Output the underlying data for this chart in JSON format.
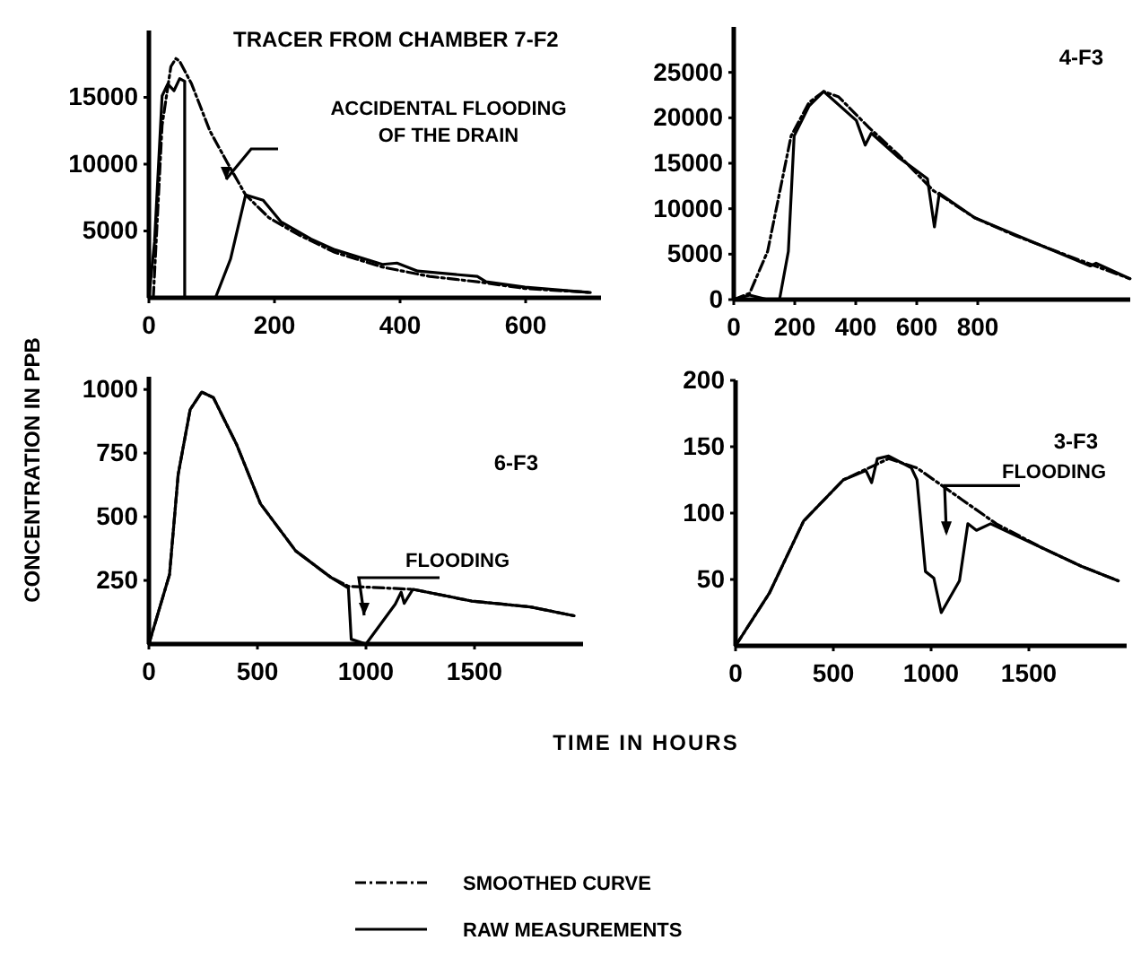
{
  "chart_data": [
    {
      "type": "line",
      "title": "TRACER FROM CHAMBER 7-F2",
      "xlim": [
        0,
        720
      ],
      "ylim": [
        0,
        20000
      ],
      "xticks": [
        0,
        200,
        400,
        600
      ],
      "yticks": [
        5000,
        10000,
        15000
      ],
      "legend": "bottom",
      "annotations": [
        "ACCIDENTAL FLOODING\nOF THE DRAIN"
      ],
      "series": [
        {
          "name": "SMOOTHED CURVE",
          "color": "#000000",
          "line_style": "dashed",
          "x": [
            7,
            21,
            35,
            43,
            49,
            68,
            97,
            125,
            154,
            191,
            239,
            296,
            372,
            447,
            523,
            599,
            703
          ],
          "values": [
            0,
            12900,
            17300,
            17900,
            17700,
            16000,
            12500,
            10100,
            7700,
            6000,
            4700,
            3400,
            2300,
            1600,
            1200,
            700,
            400
          ]
        },
        {
          "name": "RAW MEASUREMENTS",
          "color": "#000000",
          "line_style": "solid",
          "x": [
            0,
            9,
            21,
            30,
            40,
            49,
            57,
            57,
            106,
            130,
            154,
            182,
            210,
            258,
            296,
            372,
            395,
            428,
            523,
            537,
            599,
            703
          ],
          "values": [
            0,
            4200,
            15100,
            16000,
            15500,
            16400,
            16200,
            0,
            0,
            2900,
            7700,
            7300,
            5700,
            4400,
            3600,
            2500,
            2600,
            2000,
            1600,
            1200,
            800,
            400
          ]
        }
      ]
    },
    {
      "type": "line",
      "title": "4-F3",
      "xlim": [
        0,
        1300
      ],
      "ylim": [
        0,
        30000
      ],
      "xticks": [
        0,
        200,
        400,
        600,
        800
      ],
      "yticks": [
        0,
        5000,
        10000,
        15000,
        20000,
        25000
      ],
      "series": [
        {
          "color": "#000000",
          "line_style": "dashed",
          "x": [
            0,
            52,
            111,
            188,
            247,
            295,
            344,
            441,
            538,
            654,
            790,
            926,
            1082,
            1217,
            1299
          ],
          "values": [
            0,
            700,
            5300,
            18000,
            21700,
            22900,
            22300,
            19000,
            16000,
            12000,
            9000,
            7000,
            5000,
            3300,
            2300
          ]
        },
        {
          "color": "#000000",
          "line_style": "solid",
          "x": [
            0,
            52,
            111,
            150,
            179,
            198,
            247,
            295,
            402,
            431,
            451,
            538,
            635,
            658,
            674,
            790,
            1169,
            1188,
            1299
          ],
          "values": [
            0,
            500,
            0,
            0,
            5300,
            18000,
            21300,
            22900,
            19700,
            17000,
            18300,
            15700,
            13300,
            8000,
            11700,
            9000,
            3700,
            4000,
            2300
          ]
        }
      ]
    },
    {
      "type": "line",
      "title": "6-F3",
      "ylabel": "CONCENTRATION IN PPB",
      "xlabel": "TIME IN HOURS",
      "xlim": [
        0,
        2000
      ],
      "ylim": [
        0,
        1050
      ],
      "xticks": [
        0,
        500,
        1000,
        1500
      ],
      "yticks": [
        250,
        500,
        750,
        1000
      ],
      "annotations": [
        "FLOODING"
      ],
      "series": [
        {
          "color": "#000000",
          "line_style": "dashed",
          "x": [
            0,
            95,
            135,
            190,
            243,
            297,
            405,
            514,
            676,
            838,
            919,
            1216,
            1486,
            1757,
            1959
          ],
          "values": [
            0,
            273,
            667,
            921,
            990,
            968,
            782,
            551,
            366,
            262,
            227,
            215,
            169,
            146,
            111
          ]
        },
        {
          "color": "#000000",
          "line_style": "solid",
          "x": [
            0,
            95,
            135,
            190,
            243,
            297,
            405,
            514,
            676,
            838,
            919,
            932,
            1000,
            1135,
            1162,
            1176,
            1216,
            1486,
            1757,
            1959
          ],
          "values": [
            0,
            273,
            667,
            921,
            990,
            968,
            782,
            551,
            366,
            262,
            220,
            19,
            0,
            157,
            204,
            160,
            215,
            169,
            146,
            111
          ]
        }
      ]
    },
    {
      "type": "line",
      "title": "3-F3",
      "xlim": [
        0,
        2000
      ],
      "ylim": [
        0,
        200
      ],
      "xticks": [
        0,
        500,
        1000,
        1500
      ],
      "yticks": [
        50,
        100,
        150,
        200
      ],
      "annotations": [
        {
          "text": "FLOODING",
          "x": 1078,
          "y": 118
        }
      ],
      "series": [
        {
          "color": "#000000",
          "line_style": "dashed",
          "x": [
            0,
            174,
            348,
            551,
            783,
            928,
            1159,
            1333,
            1565,
            1768,
            1957
          ],
          "values": [
            0,
            40,
            94,
            125,
            141,
            134,
            110,
            92,
            74,
            60,
            49
          ]
        },
        {
          "color": "#000000",
          "line_style": "solid",
          "x": [
            0,
            174,
            348,
            551,
            667,
            696,
            725,
            783,
            899,
            928,
            971,
            1014,
            1052,
            1145,
            1188,
            1232,
            1304,
            1565,
            1768,
            1957
          ],
          "values": [
            0,
            40,
            94,
            125,
            132,
            123,
            141,
            143,
            134,
            125,
            56,
            51,
            25,
            49,
            92,
            87,
            92,
            74,
            60,
            49
          ]
        }
      ]
    }
  ]
}
